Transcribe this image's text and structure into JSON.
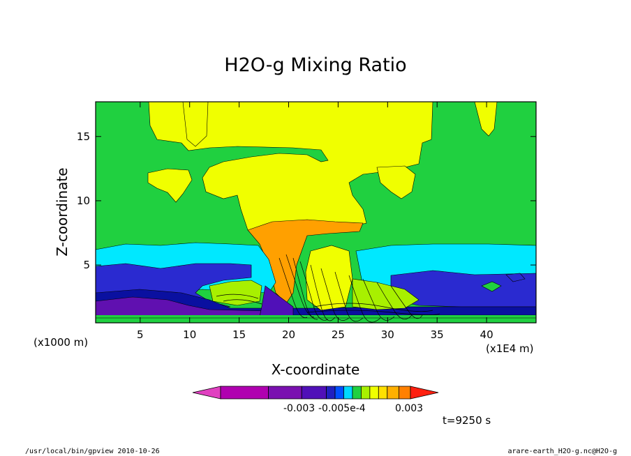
{
  "chart_data": {
    "type": "heatmap",
    "title": "H2O-g Mixing Ratio",
    "xlabel": "X-coordinate",
    "ylabel": "Z-coordinate",
    "x_unit_left": "(x1000 m)",
    "x_unit_right": "(x1E4 m)",
    "x_ticks": [
      "5",
      "10",
      "15",
      "20",
      "25",
      "30",
      "35",
      "40"
    ],
    "y_ticks": [
      "5",
      "10",
      "15"
    ],
    "xlim": [
      0.5,
      45
    ],
    "ylim": [
      0.5,
      17.7
    ],
    "time_label": "t=9250 s",
    "colorbar": {
      "levels_labels": [
        "-0.003",
        "-0.005e-4",
        "0.003"
      ],
      "colors": [
        "#e040c0",
        "#b000b0",
        "#7a10b0",
        "#5010b8",
        "#2020c0",
        "#0050ff",
        "#00d8ff",
        "#20d040",
        "#a8f000",
        "#f0ff00",
        "#ffe000",
        "#ffb000",
        "#ff8000",
        "#ff2010"
      ]
    },
    "bands": [
      {
        "name": "background",
        "color": "#20d040"
      },
      {
        "name": "upper",
        "color": "#f0ff00"
      },
      {
        "name": "core",
        "color": "#ffa000"
      },
      {
        "name": "low-cyan",
        "color": "#00e8ff"
      },
      {
        "name": "low-blue",
        "color": "#2020c0"
      },
      {
        "name": "surface-violet",
        "color": "#6010b0"
      }
    ]
  },
  "footer": {
    "left": "/usr/local/bin/gpview  2010-10-26",
    "right": "arare-earth_H2O-g.nc@H2O-g"
  }
}
